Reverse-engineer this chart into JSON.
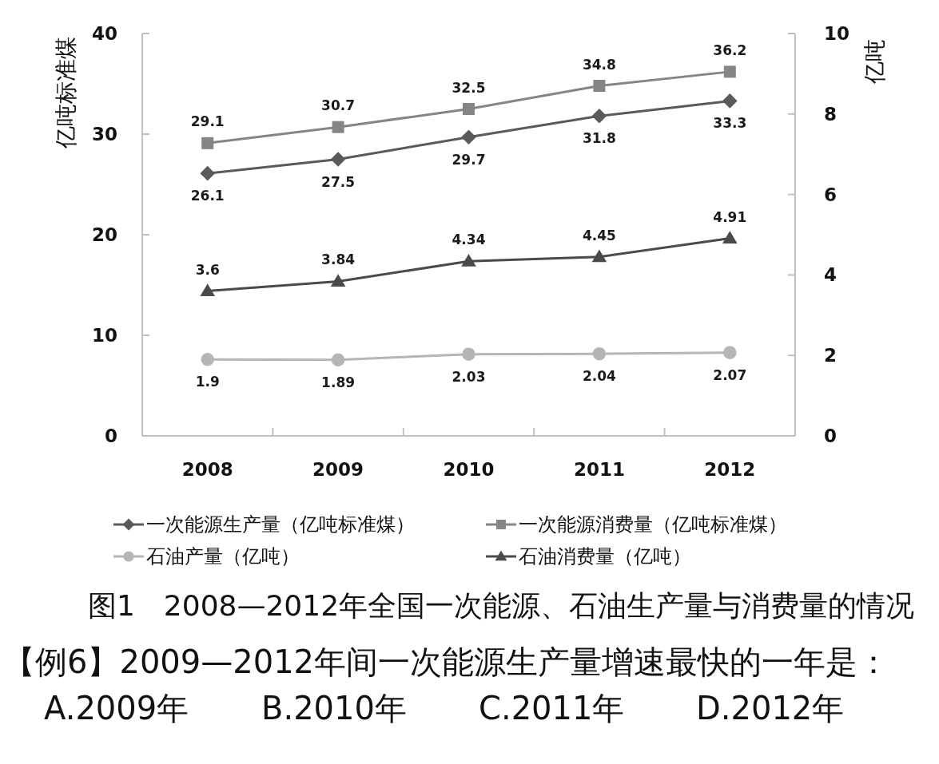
{
  "chart_data": {
    "type": "line",
    "categories": [
      "2008",
      "2009",
      "2010",
      "2011",
      "2012"
    ],
    "series": [
      {
        "name": "一次能源生产量（亿吨标准煤）",
        "color": "#5a5a5a",
        "marker": "diamond",
        "values": [
          26.1,
          27.5,
          29.7,
          31.8,
          33.3
        ]
      },
      {
        "name": "一次能源消费量（亿吨标准煤）",
        "color": "#858585",
        "marker": "square",
        "values": [
          29.1,
          30.7,
          32.5,
          34.8,
          36.2
        ]
      },
      {
        "name": "石油产量（亿吨）",
        "color": "#b5b5b5",
        "marker": "circle",
        "axis": "y2",
        "values": [
          1.9,
          1.89,
          2.03,
          2.04,
          2.07
        ]
      },
      {
        "name": "石油消费量（亿吨）",
        "color": "#4a4a4a",
        "marker": "triangle",
        "axis": "y2",
        "values": [
          3.6,
          3.84,
          4.34,
          4.45,
          4.91
        ]
      }
    ],
    "ylabel": "亿吨标准煤",
    "y2label": "亿吨",
    "ylim": [
      0,
      40
    ],
    "yticks": [
      0,
      10,
      20,
      30,
      40
    ],
    "y2lim": [
      0,
      10
    ],
    "y2ticks": [
      0,
      2,
      4,
      6,
      8,
      10
    ],
    "data_labels": true,
    "legend": "bottom",
    "annotations": [
      "图1　2008—2012年全国一次能源、石油生产量与消费量的情况",
      "【例6】2009—2012年间一次能源生产量增速最快的一年是：",
      "A.2009年",
      "B.2010年",
      "C.2011年",
      "D.2012年"
    ]
  }
}
